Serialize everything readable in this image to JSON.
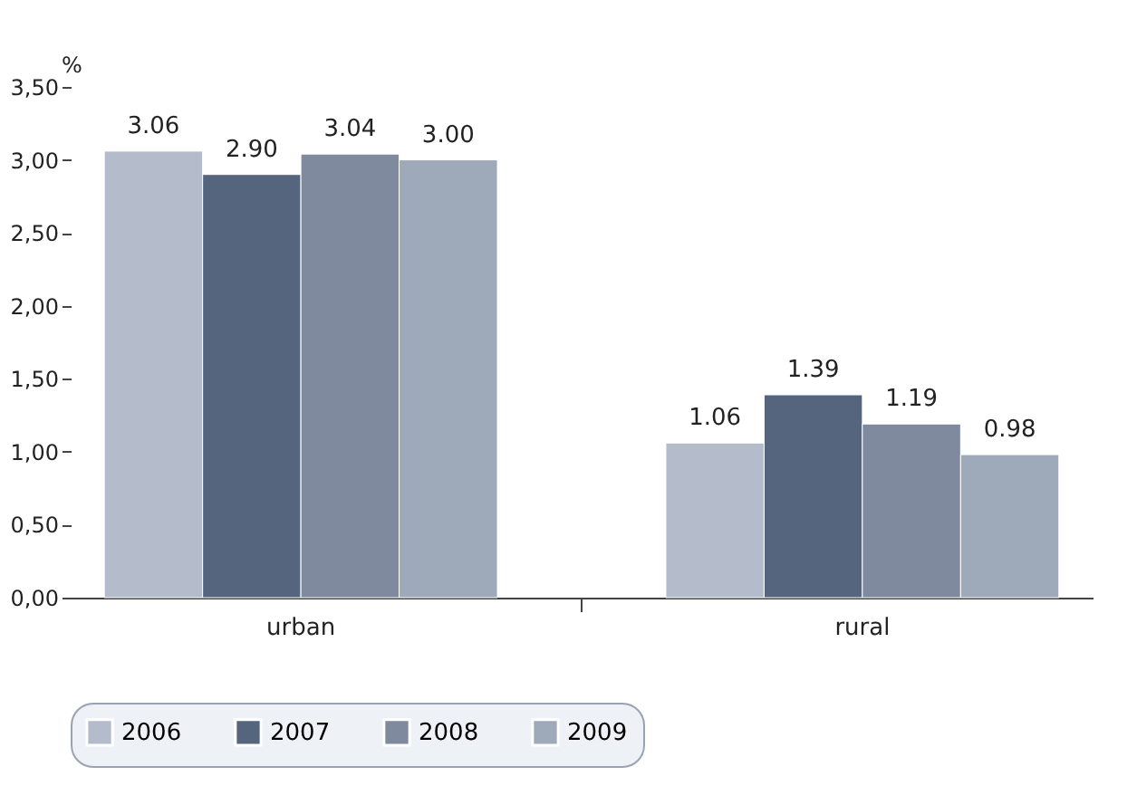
{
  "chart_data": {
    "type": "bar",
    "ylabel": "%",
    "categories": [
      "urban",
      "rural"
    ],
    "series": [
      {
        "name": "2006",
        "color": "#b4bccb",
        "values": [
          3.06,
          1.06
        ],
        "value_labels": [
          "3.06",
          "1.06"
        ]
      },
      {
        "name": "2007",
        "color": "#56657e",
        "values": [
          2.9,
          1.39
        ],
        "value_labels": [
          "2.90",
          "1.39"
        ]
      },
      {
        "name": "2008",
        "color": "#7f8a9e",
        "values": [
          3.04,
          1.19
        ],
        "value_labels": [
          "3.04",
          "1.19"
        ]
      },
      {
        "name": "2009",
        "color": "#9ea9ba",
        "values": [
          3.0,
          0.98
        ],
        "value_labels": [
          "3.00",
          "0.98"
        ]
      }
    ],
    "ylim": [
      0,
      3.5
    ],
    "yticks": [
      {
        "value": 0,
        "label": "0,00"
      },
      {
        "value": 0.5,
        "label": "0,50"
      },
      {
        "value": 1,
        "label": "1,00"
      },
      {
        "value": 1.5,
        "label": "1,50"
      },
      {
        "value": 2,
        "label": "2,00"
      },
      {
        "value": 2.5,
        "label": "2,50"
      },
      {
        "value": 3,
        "label": "3,00"
      },
      {
        "value": 3.5,
        "label": "3,50"
      }
    ],
    "grid": false,
    "legend": "bottom"
  }
}
